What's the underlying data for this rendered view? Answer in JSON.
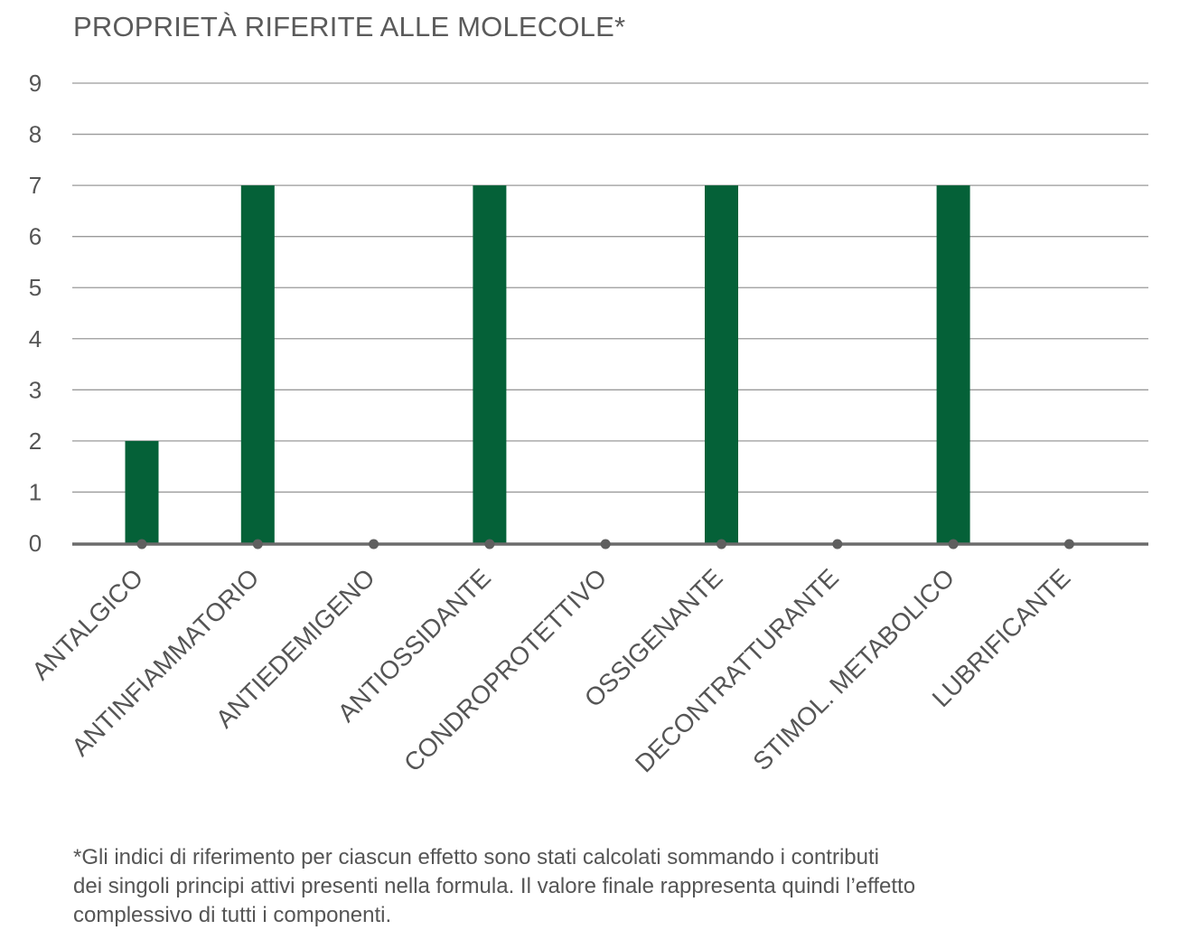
{
  "chart_data": {
    "type": "bar",
    "title": "PROPRIETÀ RIFERITE ALLE MOLECOLE*",
    "categories": [
      "ANTALGICO",
      "ANTINFIAMMATORIO",
      "ANTIEDEMIGENO",
      "ANTIOSSIDANTE",
      "CONDROPROTETTIVO",
      "OSSIGENANTE",
      "DECONTRATTURANTE",
      "STIMOL. METABOLICO",
      "LUBRIFICANTE"
    ],
    "values": [
      2,
      7,
      0,
      7,
      0,
      7,
      0,
      7,
      0
    ],
    "yticks": [
      "0",
      "1",
      "2",
      "3",
      "4",
      "5",
      "6",
      "7",
      "8",
      "9"
    ],
    "ylim": [
      0,
      9
    ],
    "grid": true,
    "legend": "none",
    "colors": {
      "bar": "#056138",
      "grid": "#9a9a9a",
      "axis": "#6b6b6b",
      "marker": "#5f5f5f",
      "text": "#555555"
    }
  },
  "footnote": {
    "line1": "*Gli indici di riferimento per ciascun effetto sono stati calcolati sommando i contributi",
    "line2": "dei singoli principi attivi presenti nella formula. Il valore finale rappresenta quindi l’effetto",
    "line3": "complessivo di tutti i componenti."
  }
}
